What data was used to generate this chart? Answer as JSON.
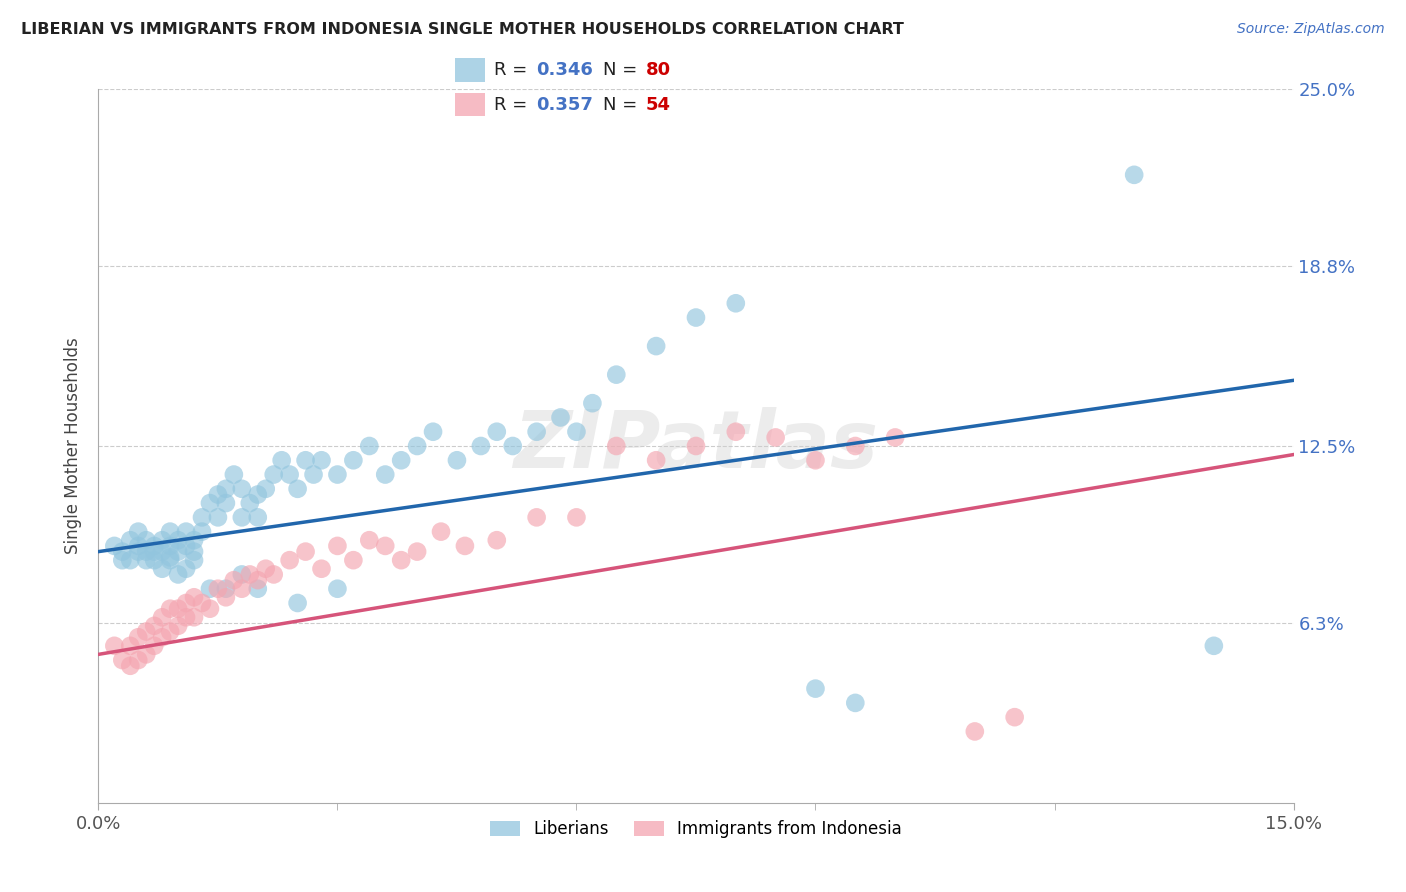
{
  "title": "LIBERIAN VS IMMIGRANTS FROM INDONESIA SINGLE MOTHER HOUSEHOLDS CORRELATION CHART",
  "source": "Source: ZipAtlas.com",
  "ylabel": "Single Mother Households",
  "xlim": [
    0.0,
    0.15
  ],
  "ylim": [
    0.0,
    0.25
  ],
  "ytick_vals": [
    0.063,
    0.125,
    0.188,
    0.25
  ],
  "ytick_labels": [
    "6.3%",
    "12.5%",
    "18.8%",
    "25.0%"
  ],
  "xtick_vals": [
    0.0,
    0.15
  ],
  "xtick_labels": [
    "0.0%",
    "15.0%"
  ],
  "legend_R1": "R = 0.346",
  "legend_N1": "N = 80",
  "legend_R2": "R = 0.357",
  "legend_N2": "N = 54",
  "color_blue": "#92c5de",
  "color_pink": "#f4a5b0",
  "line_color_blue": "#2166ac",
  "line_color_pink": "#d6547a",
  "watermark": "ZIPatlas",
  "blue_line_x": [
    0.0,
    0.15
  ],
  "blue_line_y": [
    0.088,
    0.148
  ],
  "pink_line_x": [
    0.0,
    0.15
  ],
  "pink_line_y": [
    0.052,
    0.122
  ],
  "blue_x": [
    0.002,
    0.003,
    0.004,
    0.005,
    0.005,
    0.006,
    0.006,
    0.007,
    0.007,
    0.008,
    0.008,
    0.009,
    0.009,
    0.009,
    0.01,
    0.01,
    0.011,
    0.011,
    0.012,
    0.012,
    0.013,
    0.013,
    0.014,
    0.015,
    0.015,
    0.016,
    0.016,
    0.017,
    0.018,
    0.018,
    0.019,
    0.02,
    0.02,
    0.021,
    0.022,
    0.023,
    0.024,
    0.025,
    0.026,
    0.027,
    0.028,
    0.03,
    0.032,
    0.034,
    0.036,
    0.038,
    0.04,
    0.042,
    0.045,
    0.048,
    0.05,
    0.052,
    0.055,
    0.058,
    0.06,
    0.062,
    0.065,
    0.07,
    0.075,
    0.08,
    0.003,
    0.004,
    0.005,
    0.006,
    0.007,
    0.008,
    0.009,
    0.01,
    0.011,
    0.012,
    0.014,
    0.016,
    0.018,
    0.02,
    0.025,
    0.03,
    0.09,
    0.095,
    0.13,
    0.14
  ],
  "blue_y": [
    0.09,
    0.088,
    0.092,
    0.09,
    0.095,
    0.088,
    0.092,
    0.085,
    0.09,
    0.088,
    0.092,
    0.086,
    0.09,
    0.095,
    0.088,
    0.092,
    0.09,
    0.095,
    0.088,
    0.092,
    0.1,
    0.095,
    0.105,
    0.1,
    0.108,
    0.11,
    0.105,
    0.115,
    0.1,
    0.11,
    0.105,
    0.1,
    0.108,
    0.11,
    0.115,
    0.12,
    0.115,
    0.11,
    0.12,
    0.115,
    0.12,
    0.115,
    0.12,
    0.125,
    0.115,
    0.12,
    0.125,
    0.13,
    0.12,
    0.125,
    0.13,
    0.125,
    0.13,
    0.135,
    0.13,
    0.14,
    0.15,
    0.16,
    0.17,
    0.175,
    0.085,
    0.085,
    0.088,
    0.085,
    0.088,
    0.082,
    0.085,
    0.08,
    0.082,
    0.085,
    0.075,
    0.075,
    0.08,
    0.075,
    0.07,
    0.075,
    0.04,
    0.035,
    0.22,
    0.055
  ],
  "pink_x": [
    0.002,
    0.003,
    0.004,
    0.004,
    0.005,
    0.005,
    0.006,
    0.006,
    0.007,
    0.007,
    0.008,
    0.008,
    0.009,
    0.009,
    0.01,
    0.01,
    0.011,
    0.011,
    0.012,
    0.012,
    0.013,
    0.014,
    0.015,
    0.016,
    0.017,
    0.018,
    0.019,
    0.02,
    0.021,
    0.022,
    0.024,
    0.026,
    0.028,
    0.03,
    0.032,
    0.034,
    0.036,
    0.038,
    0.04,
    0.043,
    0.046,
    0.05,
    0.055,
    0.06,
    0.065,
    0.07,
    0.075,
    0.08,
    0.085,
    0.09,
    0.095,
    0.1,
    0.11,
    0.115
  ],
  "pink_y": [
    0.055,
    0.05,
    0.048,
    0.055,
    0.05,
    0.058,
    0.052,
    0.06,
    0.055,
    0.062,
    0.058,
    0.065,
    0.06,
    0.068,
    0.062,
    0.068,
    0.065,
    0.07,
    0.065,
    0.072,
    0.07,
    0.068,
    0.075,
    0.072,
    0.078,
    0.075,
    0.08,
    0.078,
    0.082,
    0.08,
    0.085,
    0.088,
    0.082,
    0.09,
    0.085,
    0.092,
    0.09,
    0.085,
    0.088,
    0.095,
    0.09,
    0.092,
    0.1,
    0.1,
    0.125,
    0.12,
    0.125,
    0.13,
    0.128,
    0.12,
    0.125,
    0.128,
    0.025,
    0.03
  ]
}
